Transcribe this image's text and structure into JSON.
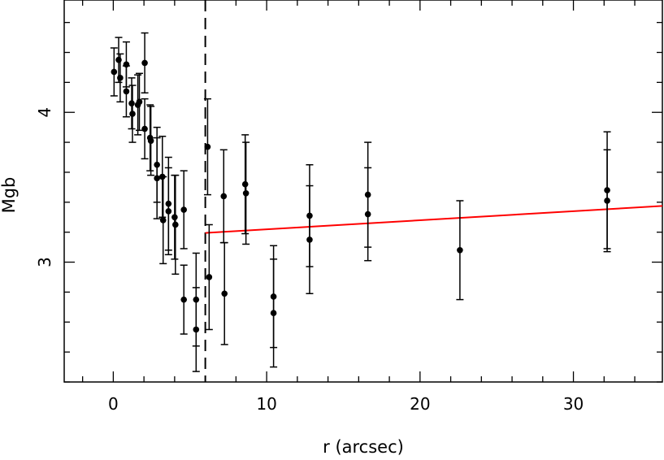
{
  "chart_data": {
    "type": "scatter",
    "title": "",
    "xlabel": "r (arcsec)",
    "ylabel": "Mgb",
    "xlim": [
      -3.2,
      35.8
    ],
    "ylim": [
      2.2,
      4.75
    ],
    "grid": false,
    "legend": "none",
    "x_tick_labels": [
      "0",
      "10",
      "20",
      "30"
    ],
    "x_tick_values": [
      0,
      10,
      20,
      30
    ],
    "y_tick_labels": [
      "3",
      "4"
    ],
    "y_tick_values": [
      3,
      4
    ],
    "points": [
      {
        "x": 0.05,
        "y": 4.27,
        "err": 0.16
      },
      {
        "x": 0.35,
        "y": 4.35,
        "err": 0.15
      },
      {
        "x": 0.45,
        "y": 4.23,
        "err": 0.16
      },
      {
        "x": 0.85,
        "y": 4.32,
        "err": 0.15
      },
      {
        "x": 0.85,
        "y": 4.14,
        "err": 0.17
      },
      {
        "x": 1.2,
        "y": 4.06,
        "err": 0.17
      },
      {
        "x": 1.25,
        "y": 3.99,
        "err": 0.19
      },
      {
        "x": 1.6,
        "y": 4.05,
        "err": 0.2
      },
      {
        "x": 1.7,
        "y": 4.07,
        "err": 0.19
      },
      {
        "x": 2.05,
        "y": 4.33,
        "err": 0.2
      },
      {
        "x": 2.05,
        "y": 3.89,
        "err": 0.2
      },
      {
        "x": 2.4,
        "y": 3.83,
        "err": 0.22
      },
      {
        "x": 2.45,
        "y": 3.81,
        "err": 0.23
      },
      {
        "x": 2.85,
        "y": 3.65,
        "err": 0.25
      },
      {
        "x": 2.85,
        "y": 3.56,
        "err": 0.27
      },
      {
        "x": 3.2,
        "y": 3.57,
        "err": 0.27
      },
      {
        "x": 3.25,
        "y": 3.28,
        "err": 0.29
      },
      {
        "x": 3.6,
        "y": 3.39,
        "err": 0.31
      },
      {
        "x": 3.6,
        "y": 3.34,
        "err": 0.29
      },
      {
        "x": 4.0,
        "y": 3.3,
        "err": 0.28
      },
      {
        "x": 4.05,
        "y": 3.25,
        "err": 0.33
      },
      {
        "x": 4.6,
        "y": 3.35,
        "err": 0.26
      },
      {
        "x": 4.6,
        "y": 2.75,
        "err": 0.23
      },
      {
        "x": 5.4,
        "y": 2.75,
        "err": 0.31
      },
      {
        "x": 5.4,
        "y": 2.55,
        "err": 0.28
      },
      {
        "x": 6.15,
        "y": 3.77,
        "err": 0.32
      },
      {
        "x": 6.25,
        "y": 2.9,
        "err": 0.35
      },
      {
        "x": 7.2,
        "y": 3.44,
        "err": 0.31
      },
      {
        "x": 7.25,
        "y": 2.79,
        "err": 0.34
      },
      {
        "x": 8.6,
        "y": 3.52,
        "err": 0.33
      },
      {
        "x": 8.65,
        "y": 3.46,
        "err": 0.34
      },
      {
        "x": 10.45,
        "y": 2.77,
        "err": 0.34
      },
      {
        "x": 10.45,
        "y": 2.66,
        "err": 0.36
      },
      {
        "x": 12.8,
        "y": 3.31,
        "err": 0.34
      },
      {
        "x": 12.8,
        "y": 3.15,
        "err": 0.36
      },
      {
        "x": 16.6,
        "y": 3.45,
        "err": 0.35
      },
      {
        "x": 16.6,
        "y": 3.32,
        "err": 0.31
      },
      {
        "x": 22.6,
        "y": 3.08,
        "err": 0.33
      },
      {
        "x": 32.2,
        "y": 3.48,
        "err": 0.39
      },
      {
        "x": 32.2,
        "y": 3.41,
        "err": 0.34
      }
    ],
    "vertical_line": {
      "x": 6.0,
      "style": "dashed"
    },
    "fit_line": {
      "x": [
        6.0,
        35.8
      ],
      "y": [
        3.195,
        3.375
      ],
      "color": "#ff0000"
    }
  }
}
